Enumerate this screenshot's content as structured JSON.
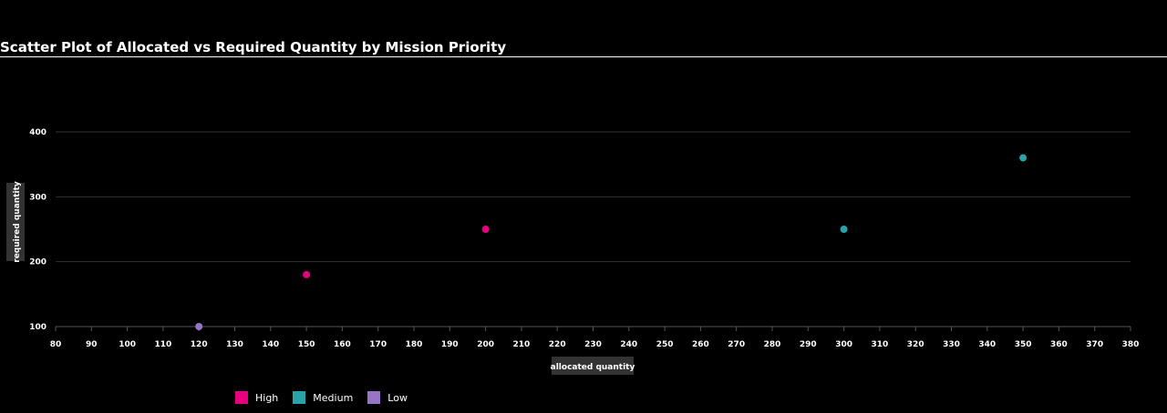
{
  "title": "Scatter Plot of Allocated vs Required Quantity by Mission Priority",
  "chart_data": {
    "type": "scatter",
    "title": "Scatter Plot of Allocated vs Required Quantity by Mission Priority",
    "xlabel": "allocated quantity",
    "ylabel": "required quantity",
    "xlim": [
      80,
      380
    ],
    "ylim": [
      100,
      400
    ],
    "x_ticks": [
      80,
      90,
      100,
      110,
      120,
      130,
      140,
      150,
      160,
      170,
      180,
      190,
      200,
      210,
      220,
      230,
      240,
      250,
      260,
      270,
      280,
      290,
      300,
      310,
      320,
      330,
      340,
      350,
      360,
      370,
      380
    ],
    "y_ticks": [
      100,
      200,
      300,
      400
    ],
    "grid": "horizontal",
    "legend_position": "bottom-left",
    "series": [
      {
        "name": "High",
        "color": "#e6007e",
        "points": [
          {
            "x": 150,
            "y": 180
          },
          {
            "x": 200,
            "y": 250
          }
        ]
      },
      {
        "name": "Medium",
        "color": "#2aa3a8",
        "points": [
          {
            "x": 300,
            "y": 250
          },
          {
            "x": 350,
            "y": 360
          }
        ]
      },
      {
        "name": "Low",
        "color": "#9775c6",
        "points": [
          {
            "x": 120,
            "y": 100
          }
        ]
      }
    ]
  }
}
